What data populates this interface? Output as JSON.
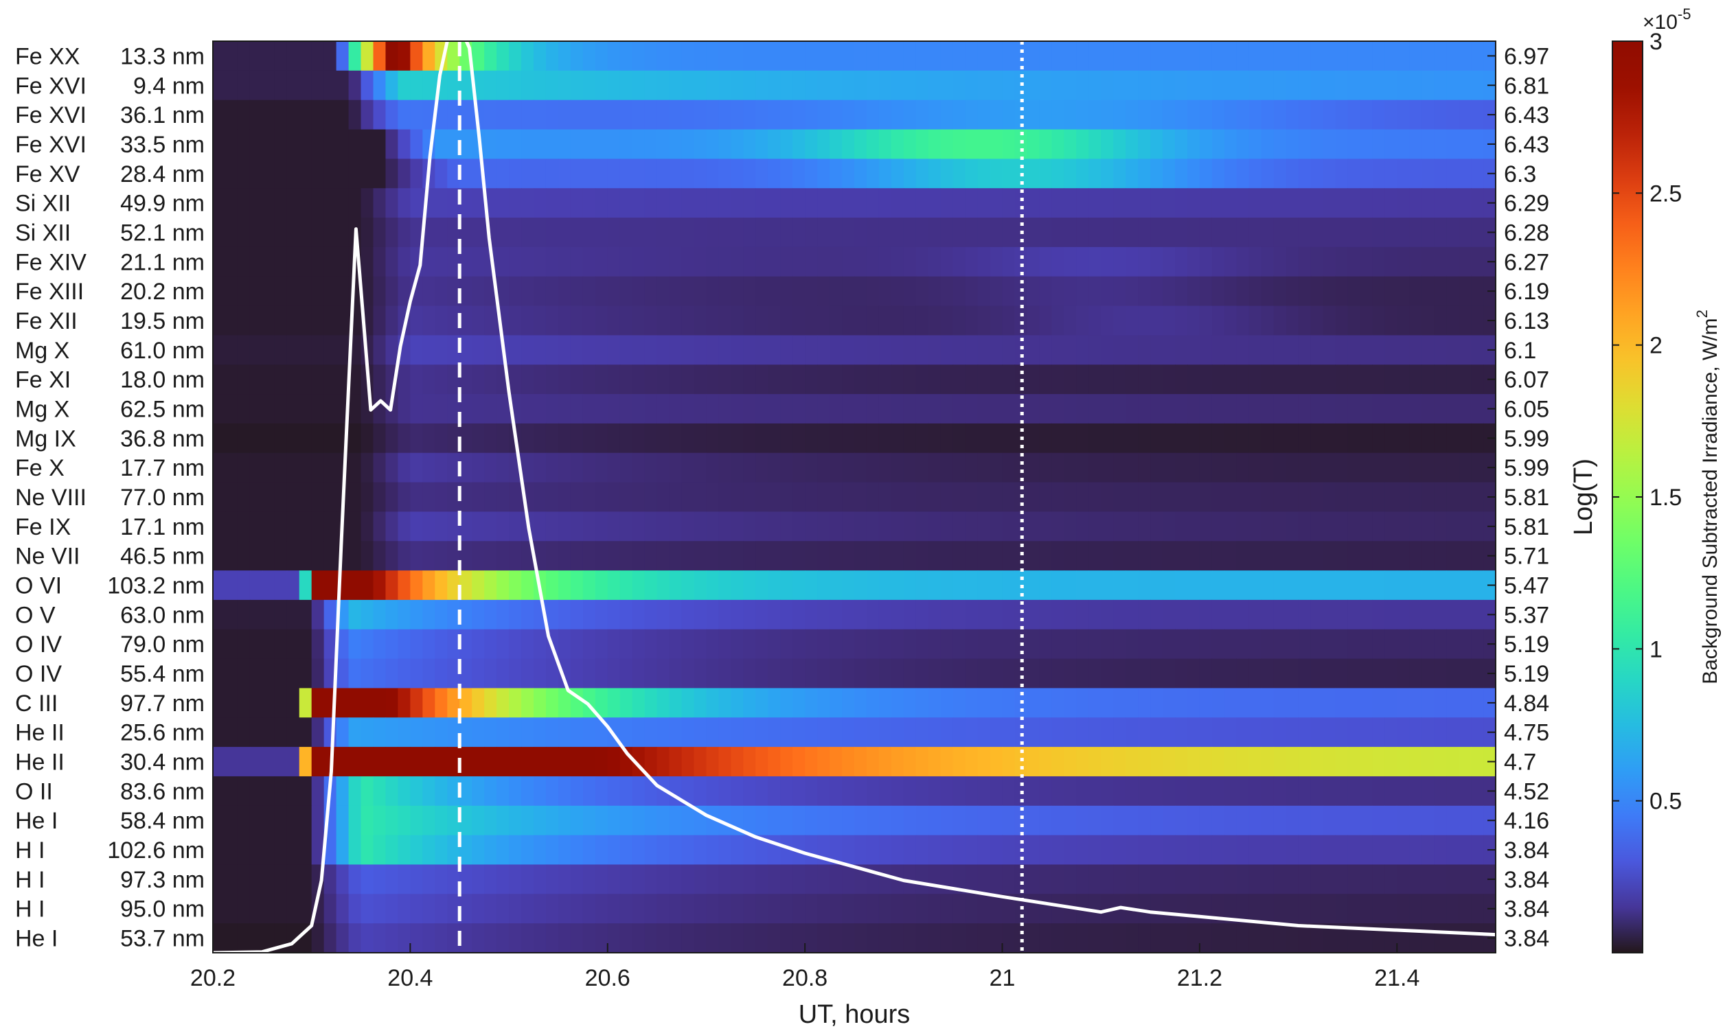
{
  "chart_data": {
    "type": "heatmap",
    "xlabel": "UT, hours",
    "ylabel_right": "Log(T)",
    "colorbar_label": "Background Subtracted Irradiance, W/m",
    "colorbar_label_sup": "2",
    "colorbar_multiplier": "×10",
    "colorbar_multiplier_exp": "-5",
    "colorbar_ticks": [
      0.5,
      1,
      1.5,
      2,
      2.5,
      3
    ],
    "colorbar_tick_labels": [
      "0.5",
      "1",
      "1.5",
      "2",
      "2.5",
      "3"
    ],
    "clim": [
      0,
      3
    ],
    "colormap": "turbo",
    "xlim": [
      20.2,
      21.5
    ],
    "xticks": [
      20.2,
      20.4,
      20.6,
      20.8,
      21.0,
      21.2,
      21.4
    ],
    "xtick_labels": [
      "20.2",
      "20.4",
      "20.6",
      "20.8",
      "21",
      "21.2",
      "21.4"
    ],
    "vlines": [
      {
        "x": 20.45,
        "style": "dashed",
        "color": "#ffffff"
      },
      {
        "x": 21.02,
        "style": "dotted",
        "color": "#ffffff"
      }
    ],
    "rows": [
      {
        "ion": "Fe XX",
        "wavelength": "13.3 nm",
        "logT": "6.97"
      },
      {
        "ion": "Fe XVI",
        "wavelength": "9.4 nm",
        "logT": "6.81"
      },
      {
        "ion": "Fe XVI",
        "wavelength": "36.1 nm",
        "logT": "6.43"
      },
      {
        "ion": "Fe XVI",
        "wavelength": "33.5 nm",
        "logT": "6.43"
      },
      {
        "ion": "Fe XV",
        "wavelength": "28.4 nm",
        "logT": "6.3"
      },
      {
        "ion": "Si XII",
        "wavelength": "49.9 nm",
        "logT": "6.29"
      },
      {
        "ion": "Si XII",
        "wavelength": "52.1 nm",
        "logT": "6.28"
      },
      {
        "ion": "Fe XIV",
        "wavelength": "21.1 nm",
        "logT": "6.27"
      },
      {
        "ion": "Fe XIII",
        "wavelength": "20.2 nm",
        "logT": "6.19"
      },
      {
        "ion": "Fe XII",
        "wavelength": "19.5 nm",
        "logT": "6.13"
      },
      {
        "ion": "Mg X",
        "wavelength": "61.0 nm",
        "logT": "6.1"
      },
      {
        "ion": "Fe XI",
        "wavelength": "18.0 nm",
        "logT": "6.07"
      },
      {
        "ion": "Mg X",
        "wavelength": "62.5 nm",
        "logT": "6.05"
      },
      {
        "ion": "Mg IX",
        "wavelength": "36.8 nm",
        "logT": "5.99"
      },
      {
        "ion": "Fe X",
        "wavelength": "17.7 nm",
        "logT": "5.99"
      },
      {
        "ion": "Ne VIII",
        "wavelength": "77.0 nm",
        "logT": "5.81"
      },
      {
        "ion": "Fe IX",
        "wavelength": "17.1 nm",
        "logT": "5.81"
      },
      {
        "ion": "Ne VII",
        "wavelength": "46.5 nm",
        "logT": "5.71"
      },
      {
        "ion": "O VI",
        "wavelength": "103.2 nm",
        "logT": "5.47"
      },
      {
        "ion": "O V",
        "wavelength": "63.0 nm",
        "logT": "5.37"
      },
      {
        "ion": "O IV",
        "wavelength": "79.0 nm",
        "logT": "5.19"
      },
      {
        "ion": "O IV",
        "wavelength": "55.4 nm",
        "logT": "5.19"
      },
      {
        "ion": "C III",
        "wavelength": "97.7 nm",
        "logT": "4.84"
      },
      {
        "ion": "He II",
        "wavelength": "25.6 nm",
        "logT": "4.75"
      },
      {
        "ion": "He II",
        "wavelength": "30.4 nm",
        "logT": "4.7"
      },
      {
        "ion": "O II",
        "wavelength": "83.6 nm",
        "logT": "4.52"
      },
      {
        "ion": "He I",
        "wavelength": "58.4 nm",
        "logT": "4.16"
      },
      {
        "ion": "H I",
        "wavelength": "102.6 nm",
        "logT": "3.84"
      },
      {
        "ion": "H I",
        "wavelength": "97.3 nm",
        "logT": "3.84"
      },
      {
        "ion": "H I",
        "wavelength": "95.0 nm",
        "logT": "3.84"
      },
      {
        "ion": "He I",
        "wavelength": "53.7 nm",
        "logT": "3.84"
      }
    ],
    "heatmap_profiles": [
      {
        "t0": 20.325,
        "rise": 0.06,
        "peak": 3.2,
        "decay": 0.06,
        "floor": 0.45,
        "pre": 0.05
      },
      {
        "t0": 20.34,
        "rise": 0.05,
        "peak": 0.8,
        "decay": 0.6,
        "floor": 0.45,
        "pre": 0.05
      },
      {
        "t0": 20.34,
        "rise": 0.05,
        "peak": 0.4,
        "decay": 1.5,
        "floor": 0.2,
        "pre": 0.02,
        "late": [
          {
            "c": 21.05,
            "w": 0.25,
            "a": 0.25
          }
        ]
      },
      {
        "t0": 20.37,
        "rise": 0.06,
        "peak": 0.55,
        "decay": 1.5,
        "floor": 0.3,
        "pre": 0.02,
        "late": [
          {
            "c": 20.98,
            "w": 0.18,
            "a": 0.65
          }
        ]
      },
      {
        "t0": 20.37,
        "rise": 0.08,
        "peak": 0.35,
        "decay": 1.5,
        "floor": 0.25,
        "pre": 0.02,
        "late": [
          {
            "c": 21.02,
            "w": 0.18,
            "a": 0.5
          }
        ]
      },
      {
        "t0": 20.35,
        "rise": 0.05,
        "peak": 0.18,
        "decay": 1.2,
        "floor": 0.12,
        "pre": 0.02
      },
      {
        "t0": 20.35,
        "rise": 0.05,
        "peak": 0.12,
        "decay": 1.0,
        "floor": 0.08,
        "pre": 0.02
      },
      {
        "t0": 20.35,
        "rise": 0.05,
        "peak": 0.14,
        "decay": 0.6,
        "floor": 0.06,
        "pre": 0.02,
        "late": [
          {
            "c": 21.1,
            "w": 0.15,
            "a": 0.08
          }
        ]
      },
      {
        "t0": 20.35,
        "rise": 0.05,
        "peak": 0.12,
        "decay": 0.4,
        "floor": 0.03,
        "pre": 0.02,
        "late": [
          {
            "c": 21.1,
            "w": 0.15,
            "a": 0.06
          }
        ]
      },
      {
        "t0": 20.35,
        "rise": 0.05,
        "peak": 0.14,
        "decay": 0.35,
        "floor": 0.03,
        "pre": 0.02,
        "late": [
          {
            "c": 21.15,
            "w": 0.15,
            "a": 0.08
          }
        ]
      },
      {
        "t0": 20.35,
        "rise": 0.05,
        "peak": 0.18,
        "decay": 0.5,
        "floor": 0.08,
        "pre": 0.03
      },
      {
        "t0": 20.35,
        "rise": 0.05,
        "peak": 0.12,
        "decay": 0.3,
        "floor": 0.02,
        "pre": 0.02
      },
      {
        "t0": 20.35,
        "rise": 0.05,
        "peak": 0.12,
        "decay": 0.5,
        "floor": 0.07,
        "pre": 0.02
      },
      {
        "t0": 20.35,
        "rise": 0.05,
        "peak": 0.08,
        "decay": 0.25,
        "floor": 0.01,
        "pre": 0.01
      },
      {
        "t0": 20.35,
        "rise": 0.05,
        "peak": 0.15,
        "decay": 0.3,
        "floor": 0.02,
        "pre": 0.02
      },
      {
        "t0": 20.35,
        "rise": 0.05,
        "peak": 0.1,
        "decay": 0.4,
        "floor": 0.04,
        "pre": 0.02
      },
      {
        "t0": 20.35,
        "rise": 0.05,
        "peak": 0.17,
        "decay": 0.4,
        "floor": 0.05,
        "pre": 0.02
      },
      {
        "t0": 20.35,
        "rise": 0.05,
        "peak": 0.1,
        "decay": 0.3,
        "floor": 0.03,
        "pre": 0.02
      },
      {
        "t0": 20.29,
        "rise": 0.02,
        "peak": 3.8,
        "decay": 0.13,
        "floor": 0.5,
        "pre": 0.2
      },
      {
        "t0": 20.3,
        "rise": 0.04,
        "peak": 0.7,
        "decay": 0.2,
        "floor": 0.12,
        "pre": 0.03
      },
      {
        "t0": 20.3,
        "rise": 0.04,
        "peak": 0.45,
        "decay": 0.2,
        "floor": 0.06,
        "pre": 0.02
      },
      {
        "t0": 20.3,
        "rise": 0.04,
        "peak": 0.4,
        "decay": 0.25,
        "floor": 0.03,
        "pre": 0.02
      },
      {
        "t0": 20.29,
        "rise": 0.01,
        "peak": 4.5,
        "decay": 0.17,
        "floor": 0.35,
        "pre": 0.02
      },
      {
        "t0": 20.3,
        "rise": 0.04,
        "peak": 0.6,
        "decay": 0.5,
        "floor": 0.2,
        "pre": 0.02
      },
      {
        "t0": 20.29,
        "rise": 0.01,
        "peak": 5.0,
        "decay": 0.3,
        "floor": 1.5,
        "pre": 0.15
      },
      {
        "t0": 20.3,
        "rise": 0.05,
        "peak": 1.0,
        "decay": 0.2,
        "floor": 0.1,
        "pre": 0.02
      },
      {
        "t0": 20.3,
        "rise": 0.05,
        "peak": 1.0,
        "decay": 0.3,
        "floor": 0.25,
        "pre": 0.02
      },
      {
        "t0": 20.3,
        "rise": 0.05,
        "peak": 1.0,
        "decay": 0.22,
        "floor": 0.15,
        "pre": 0.02
      },
      {
        "t0": 20.3,
        "rise": 0.05,
        "peak": 0.3,
        "decay": 0.3,
        "floor": 0.05,
        "pre": 0.02
      },
      {
        "t0": 20.3,
        "rise": 0.05,
        "peak": 0.25,
        "decay": 0.3,
        "floor": 0.03,
        "pre": 0.02
      },
      {
        "t0": 20.3,
        "rise": 0.05,
        "peak": 0.2,
        "decay": 0.3,
        "floor": 0.02,
        "pre": 0.01
      }
    ],
    "lightcurve": {
      "series_color": "#ffffff",
      "x": [
        20.2,
        20.25,
        20.28,
        20.3,
        20.31,
        20.32,
        20.33,
        20.345,
        20.36,
        20.37,
        20.38,
        20.39,
        20.4,
        20.41,
        20.42,
        20.43,
        20.44,
        20.45,
        20.46,
        20.47,
        20.48,
        20.5,
        20.52,
        20.54,
        20.56,
        20.58,
        20.6,
        20.62,
        20.65,
        20.7,
        20.75,
        20.8,
        20.9,
        21.0,
        21.1,
        21.12,
        21.15,
        21.2,
        21.3,
        21.4,
        21.5
      ],
      "y": [
        0.0,
        0.001,
        0.01,
        0.03,
        0.08,
        0.2,
        0.45,
        0.8,
        0.6,
        0.61,
        0.6,
        0.67,
        0.72,
        0.76,
        0.88,
        0.97,
        1.02,
        1.025,
        1.0,
        0.9,
        0.79,
        0.62,
        0.47,
        0.35,
        0.29,
        0.275,
        0.25,
        0.22,
        0.185,
        0.152,
        0.128,
        0.11,
        0.08,
        0.062,
        0.045,
        0.05,
        0.045,
        0.04,
        0.03,
        0.025,
        0.02
      ]
    }
  }
}
